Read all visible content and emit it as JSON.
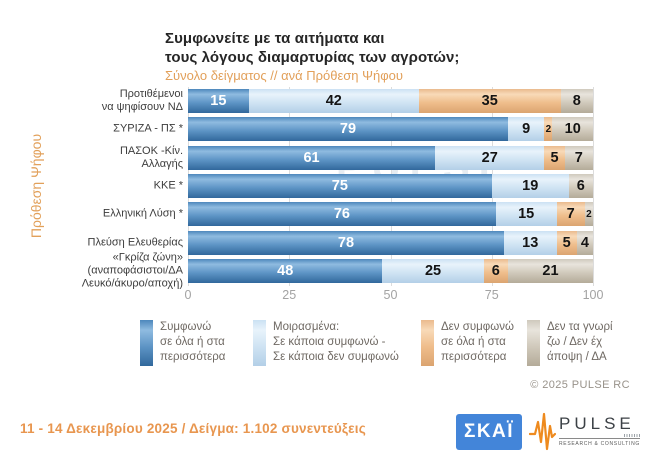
{
  "title": {
    "lines": [
      "Συμφωνείτε με τα αιτήματα και",
      "τους λόγους διαμαρτυρίας των αγροτών;"
    ],
    "subtitle": "Σύνολο δείγματος // ανά Πρόθεση Ψήφου"
  },
  "chart_data": {
    "type": "bar",
    "orientation": "horizontal",
    "stacked": true,
    "title": "Συμφωνείτε με τα αιτήματα και τους λόγους διαμαρτυρίας των αγροτών;",
    "subtitle": "Σύνολο δείγματος // ανά Πρόθεση Ψήφου",
    "y_axis_title": "Πρόθεση Ψήφου",
    "xlim": [
      0,
      100
    ],
    "x_ticks": [
      0,
      25,
      50,
      75,
      100
    ],
    "grid": true,
    "legend_position": "bottom",
    "categories": [
      "Προτιθέμενοι να ψηφίσουν ΝΔ",
      "ΣΥΡΙΖΑ - ΠΣ *",
      "ΠΑΣΟΚ -Κίν. Αλλαγής",
      "ΚΚΕ *",
      "Ελληνική Λύση *",
      "Πλεύση Ελευθερίας",
      "«Γκρίζα ζώνη» (αναποφάσιστοι/ΔΑ Λευκό/άκυρο/αποχή)"
    ],
    "categories_display": [
      [
        "Προτιθέμενοι",
        "να ψηφίσουν ΝΔ"
      ],
      [
        "ΣΥΡΙΖΑ - ΠΣ *"
      ],
      [
        "ΠΑΣΟΚ -Κίν.",
        "Αλλαγής"
      ],
      [
        "ΚΚΕ *"
      ],
      [
        "Ελληνική Λύση *"
      ],
      [
        "Πλεύση Ελευθερίας"
      ],
      [
        "«Γκρίζα ζώνη»",
        "(αναποφάσιστοι/ΔΑ",
        "Λευκό/άκυρο/αποχή)"
      ]
    ],
    "series": [
      {
        "name": "Συμφωνώ σε όλα ή στα περισσότερα",
        "color": "#4181bb",
        "gradient": [
          "#4d87bc",
          "#8fbbe0",
          "#5d94c5",
          "#31689c"
        ],
        "value_label_color": "#ffffff",
        "values": [
          15,
          79,
          61,
          75,
          76,
          78,
          48
        ]
      },
      {
        "name": "Μοιρασμένα: Σε κάποια συμφωνώ - Σε κάποια δεν συμφωνώ",
        "color": "#cde1f2",
        "gradient": [
          "#cbe1f3",
          "#e8f3fb",
          "#cfe3f3",
          "#b3cfe7"
        ],
        "value_label_color": "#141414",
        "values": [
          42,
          9,
          27,
          19,
          15,
          13,
          25
        ]
      },
      {
        "name": "Δεν συμφωνώ σε όλα ή στα περισσότερα",
        "color": "#efba87",
        "gradient": [
          "#eaba8d",
          "#f8dab8",
          "#efbd8b",
          "#dba470"
        ],
        "value_label_color": "#141414",
        "values": [
          35,
          2,
          5,
          0,
          7,
          5,
          6
        ]
      },
      {
        "name": "Δεν τα γνωρίζω / Δεν έχω άποψη / ΔΑ",
        "color": "#cdc6b8",
        "gradient": [
          "#cfc9bd",
          "#e8e4dc",
          "#d0c9bb",
          "#b4ab99"
        ],
        "value_label_color": "#141414",
        "values": [
          8,
          10,
          7,
          6,
          2,
          4,
          21
        ]
      }
    ]
  },
  "legend": {
    "items": [
      {
        "series": 0,
        "lines": [
          "Συμφωνώ",
          "σε όλα ή στα",
          "περισσότερα"
        ]
      },
      {
        "series": 1,
        "lines": [
          "Μοιρασμένα:",
          "Σε κάποια συμφωνώ -",
          "Σε κάποια δεν συμφωνώ"
        ]
      },
      {
        "series": 2,
        "lines": [
          "Δεν συμφωνώ",
          "σε όλα ή στα",
          "περισσότερα"
        ]
      },
      {
        "series": 3,
        "lines": [
          "Δεν τα γνωρί",
          "ζω / Δεν έχ",
          "άποψη / ΔΑ"
        ]
      }
    ]
  },
  "watermark": "PULSE",
  "copyright": "© 2025 PULSE RC",
  "footer": {
    "note": "11 - 14 Δεκεμβρίου 2025  /  Δείγμα:  1.102 συνεντεύξεις",
    "skai_logo_text": "ΣΚΑΪ",
    "pulse_logo_text": "PULSE",
    "pulse_logo_subtext": "RESEARCH & CONSULTING"
  }
}
